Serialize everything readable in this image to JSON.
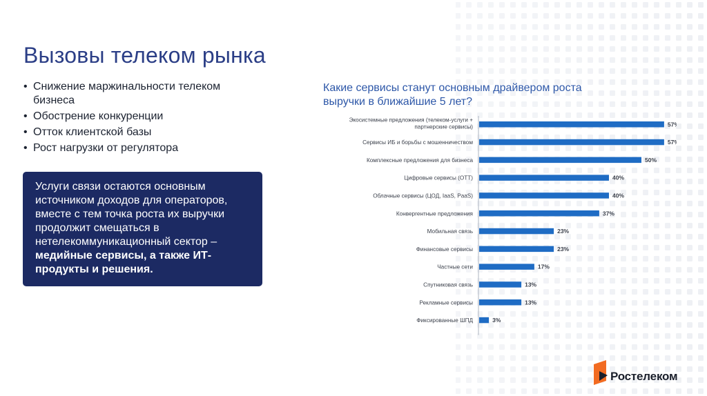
{
  "slide": {
    "title": "Вызовы телеком рынка",
    "bullets": [
      "Снижение маржинальности телеком бизнеса",
      "Обострение конкуренции",
      "Отток клиентской базы",
      "Рост нагрузки от регулятора"
    ],
    "callout": {
      "text": "Услуги связи остаются основным источником доходов для операторов, вместе с тем точка роста их выручки продолжит смещаться в нетелекоммуникационный сектор –",
      "bold_text": "медийные сервисы, а также ИТ- продукты и решения."
    },
    "brand": "Ростелеком"
  },
  "colors": {
    "accent": "#2b3e86",
    "bar": "#1f6cc4",
    "callout_bg": "#1c2a63",
    "logo_orange": "#f26b21"
  },
  "chart_data": {
    "type": "bar",
    "orientation": "horizontal",
    "title": "Какие сервисы станут основным драйвером роста выручки в ближайшие 5 лет?",
    "categories": [
      "Экосистемные предложения (телеком-услуги + партнерские сервисы)",
      "Сервисы ИБ и борьбы с мошенничеством",
      "Комплексные предложения для бизнеса",
      "Цифровые сервисы (OTT)",
      "Облачные сервисы (ЦОД, IaaS, PaaS)",
      "Конвергентные предложения",
      "Мобильная связь",
      "Финансовые сервисы",
      "Частные сети",
      "Спутниковая связь",
      "Рекламные сервисы",
      "Фиксированные ШПД"
    ],
    "values": [
      57,
      57,
      50,
      40,
      40,
      37,
      23,
      23,
      17,
      13,
      13,
      3
    ],
    "value_labels": [
      "57%",
      "57%",
      "50%",
      "40%",
      "40%",
      "37%",
      "23%",
      "23%",
      "17%",
      "13%",
      "13%",
      "3%"
    ],
    "xlim": [
      0,
      60
    ],
    "unit": "%",
    "grid": false,
    "legend": "none"
  }
}
